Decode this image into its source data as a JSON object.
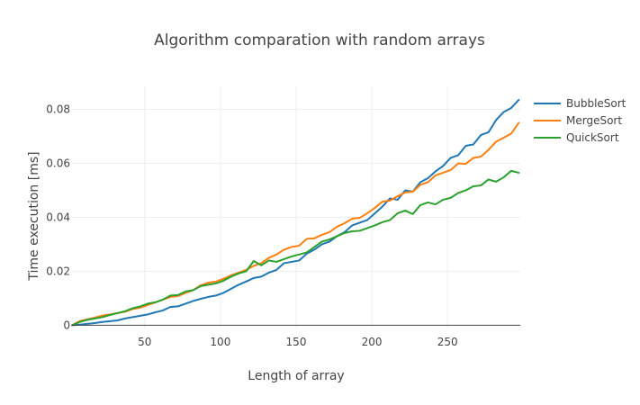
{
  "chart_data": {
    "type": "line",
    "title": "Algorithm comparation with random arrays",
    "xlabel": "Length of array",
    "ylabel": "Time execution [ms]",
    "xlim": [
      2,
      298
    ],
    "ylim": [
      -0.0012,
      0.0885
    ],
    "x_ticks": [
      50,
      100,
      150,
      200,
      250
    ],
    "y_ticks": [
      0,
      0.02,
      0.04,
      0.06,
      0.08
    ],
    "y_tick_labels": [
      "0",
      "0.02",
      "0.04",
      "0.06",
      "0.08"
    ],
    "grid": true,
    "legend": "right",
    "x": [
      2,
      7,
      12,
      17,
      22,
      27,
      32,
      37,
      42,
      47,
      52,
      57,
      62,
      67,
      72,
      77,
      82,
      87,
      92,
      97,
      102,
      107,
      112,
      117,
      122,
      127,
      132,
      137,
      142,
      147,
      152,
      157,
      162,
      167,
      172,
      177,
      182,
      187,
      192,
      197,
      202,
      207,
      212,
      217,
      222,
      227,
      232,
      237,
      242,
      247,
      252,
      257,
      262,
      267,
      272,
      277,
      282,
      287,
      292,
      297
    ],
    "series": [
      {
        "name": "BubbleSort",
        "color": "#1f77b4",
        "values": [
          0.0,
          0.0002,
          0.0005,
          0.0008,
          0.0012,
          0.0015,
          0.0018,
          0.0025,
          0.003,
          0.0035,
          0.004,
          0.0048,
          0.0055,
          0.0068,
          0.007,
          0.008,
          0.009,
          0.0098,
          0.0105,
          0.011,
          0.012,
          0.0135,
          0.015,
          0.0162,
          0.0175,
          0.018,
          0.0195,
          0.0205,
          0.023,
          0.0235,
          0.024,
          0.0265,
          0.028,
          0.03,
          0.031,
          0.033,
          0.0345,
          0.037,
          0.038,
          0.039,
          0.0415,
          0.044,
          0.047,
          0.0465,
          0.05,
          0.0495,
          0.053,
          0.0545,
          0.057,
          0.059,
          0.062,
          0.063,
          0.0665,
          0.067,
          0.0705,
          0.0715,
          0.076,
          0.079,
          0.0805,
          0.0835
        ]
      },
      {
        "name": "MergeSort",
        "color": "#ff7f0e",
        "values": [
          0.0,
          0.0015,
          0.0022,
          0.0028,
          0.0036,
          0.004,
          0.0045,
          0.005,
          0.006,
          0.0065,
          0.0075,
          0.0085,
          0.0095,
          0.0105,
          0.0108,
          0.012,
          0.013,
          0.0148,
          0.0158,
          0.0162,
          0.0172,
          0.0185,
          0.0195,
          0.0205,
          0.022,
          0.023,
          0.025,
          0.0262,
          0.028,
          0.029,
          0.0295,
          0.032,
          0.0322,
          0.0335,
          0.0345,
          0.0365,
          0.0378,
          0.0395,
          0.0398,
          0.0415,
          0.0435,
          0.0458,
          0.0462,
          0.0478,
          0.0492,
          0.0495,
          0.052,
          0.053,
          0.0555,
          0.0565,
          0.0575,
          0.06,
          0.0598,
          0.062,
          0.0625,
          0.065,
          0.068,
          0.0695,
          0.071,
          0.075
        ]
      },
      {
        "name": "QuickSort",
        "color": "#2ca02c",
        "values": [
          0.0,
          0.0012,
          0.002,
          0.0025,
          0.003,
          0.0038,
          0.0045,
          0.0052,
          0.0063,
          0.007,
          0.008,
          0.0085,
          0.0095,
          0.011,
          0.0112,
          0.0125,
          0.013,
          0.0145,
          0.015,
          0.0155,
          0.0165,
          0.018,
          0.0192,
          0.02,
          0.0238,
          0.0222,
          0.024,
          0.0235,
          0.0245,
          0.0255,
          0.0262,
          0.027,
          0.029,
          0.031,
          0.0318,
          0.033,
          0.0342,
          0.0348,
          0.035,
          0.036,
          0.037,
          0.0382,
          0.039,
          0.0415,
          0.0425,
          0.0412,
          0.0445,
          0.0455,
          0.0448,
          0.0465,
          0.0472,
          0.049,
          0.05,
          0.0515,
          0.0518,
          0.054,
          0.0532,
          0.0548,
          0.0572,
          0.0565
        ]
      }
    ]
  }
}
